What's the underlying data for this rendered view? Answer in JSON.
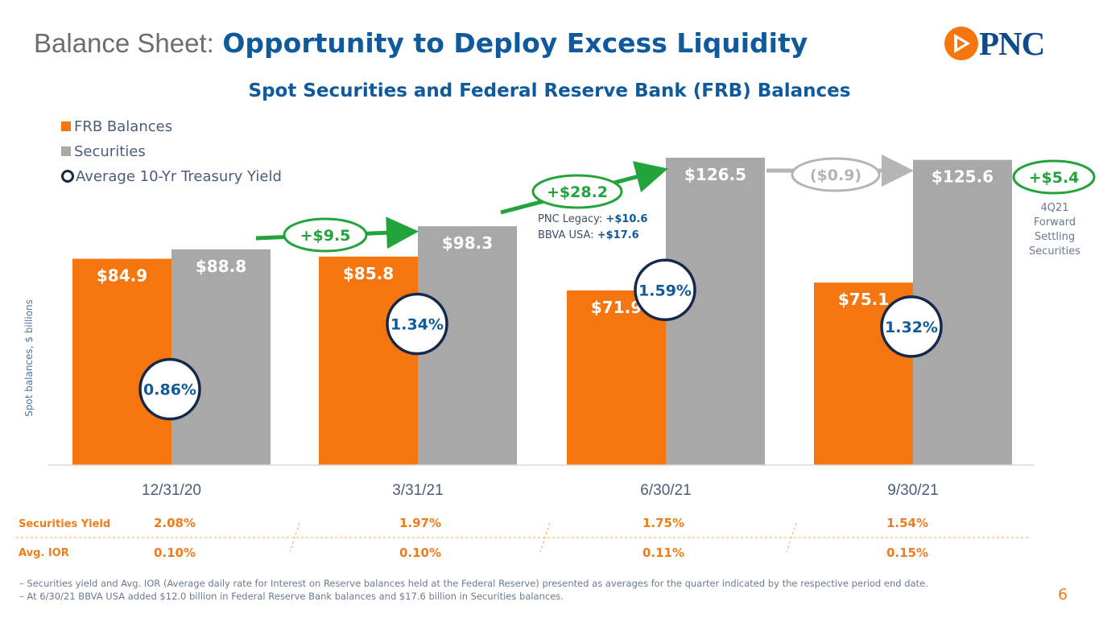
{
  "header": {
    "title_prefix": "Balance Sheet:",
    "title_main": "Opportunity to Deploy Excess Liquidity",
    "logo_text": "PNC",
    "page_number": "6"
  },
  "chart_data": {
    "type": "bar",
    "title": "Spot Securities and Federal Reserve Bank (FRB) Balances",
    "ylabel": "Spot balances, $ billions",
    "ylim": [
      0,
      135
    ],
    "categories": [
      "12/31/20",
      "3/31/21",
      "6/30/21",
      "9/30/21"
    ],
    "series": [
      {
        "name": "FRB Balances",
        "color": "#f5760f",
        "values": [
          84.9,
          85.8,
          71.9,
          75.1
        ],
        "labels": [
          "$84.9",
          "$85.8",
          "$71.9",
          "$75.1"
        ]
      },
      {
        "name": "Securities",
        "color": "#a8a8a8",
        "values": [
          88.8,
          98.3,
          126.5,
          125.6
        ],
        "labels": [
          "$88.8",
          "$98.3",
          "$126.5",
          "$125.6"
        ]
      }
    ],
    "yield_series": {
      "name": "Average 10-Yr Treasury Yield",
      "values": [
        0.86,
        1.34,
        1.59,
        1.32
      ],
      "labels": [
        "0.86%",
        "1.34%",
        "1.59%",
        "1.32%"
      ]
    },
    "changes": [
      {
        "label": "+$9.5",
        "color": "#22a33b"
      },
      {
        "label": "+$28.2",
        "color": "#22a33b"
      },
      {
        "label": "($0.9)",
        "color": "#b5b5b5"
      },
      {
        "label": "+$5.4",
        "color": "#22a33b"
      }
    ],
    "annotations": {
      "pnc_legacy_label": "PNC Legacy: ",
      "pnc_legacy_value": "+$10.6",
      "bbva_label": "BBVA USA: ",
      "bbva_value": "+$17.6",
      "forward_line1": "4Q21",
      "forward_line2": "Forward",
      "forward_line3": "Settling",
      "forward_line4": "Securities"
    }
  },
  "table": {
    "row1_label": "Securities Yield",
    "row1_values": [
      "2.08%",
      "1.97%",
      "1.75%",
      "1.54%"
    ],
    "row2_label": "Avg. IOR",
    "row2_values": [
      "0.10%",
      "0.10%",
      "0.11%",
      "0.15%"
    ]
  },
  "footnotes": [
    "– Securities yield and Avg. IOR (Average daily rate for Interest on Reserve balances held at the Federal Reserve) presented as averages for the quarter indicated by the respective period end date.",
    "– At 6/30/21 BBVA USA added $12.0 billion in Federal Reserve Bank balances and $17.6 billion in Securities balances."
  ]
}
